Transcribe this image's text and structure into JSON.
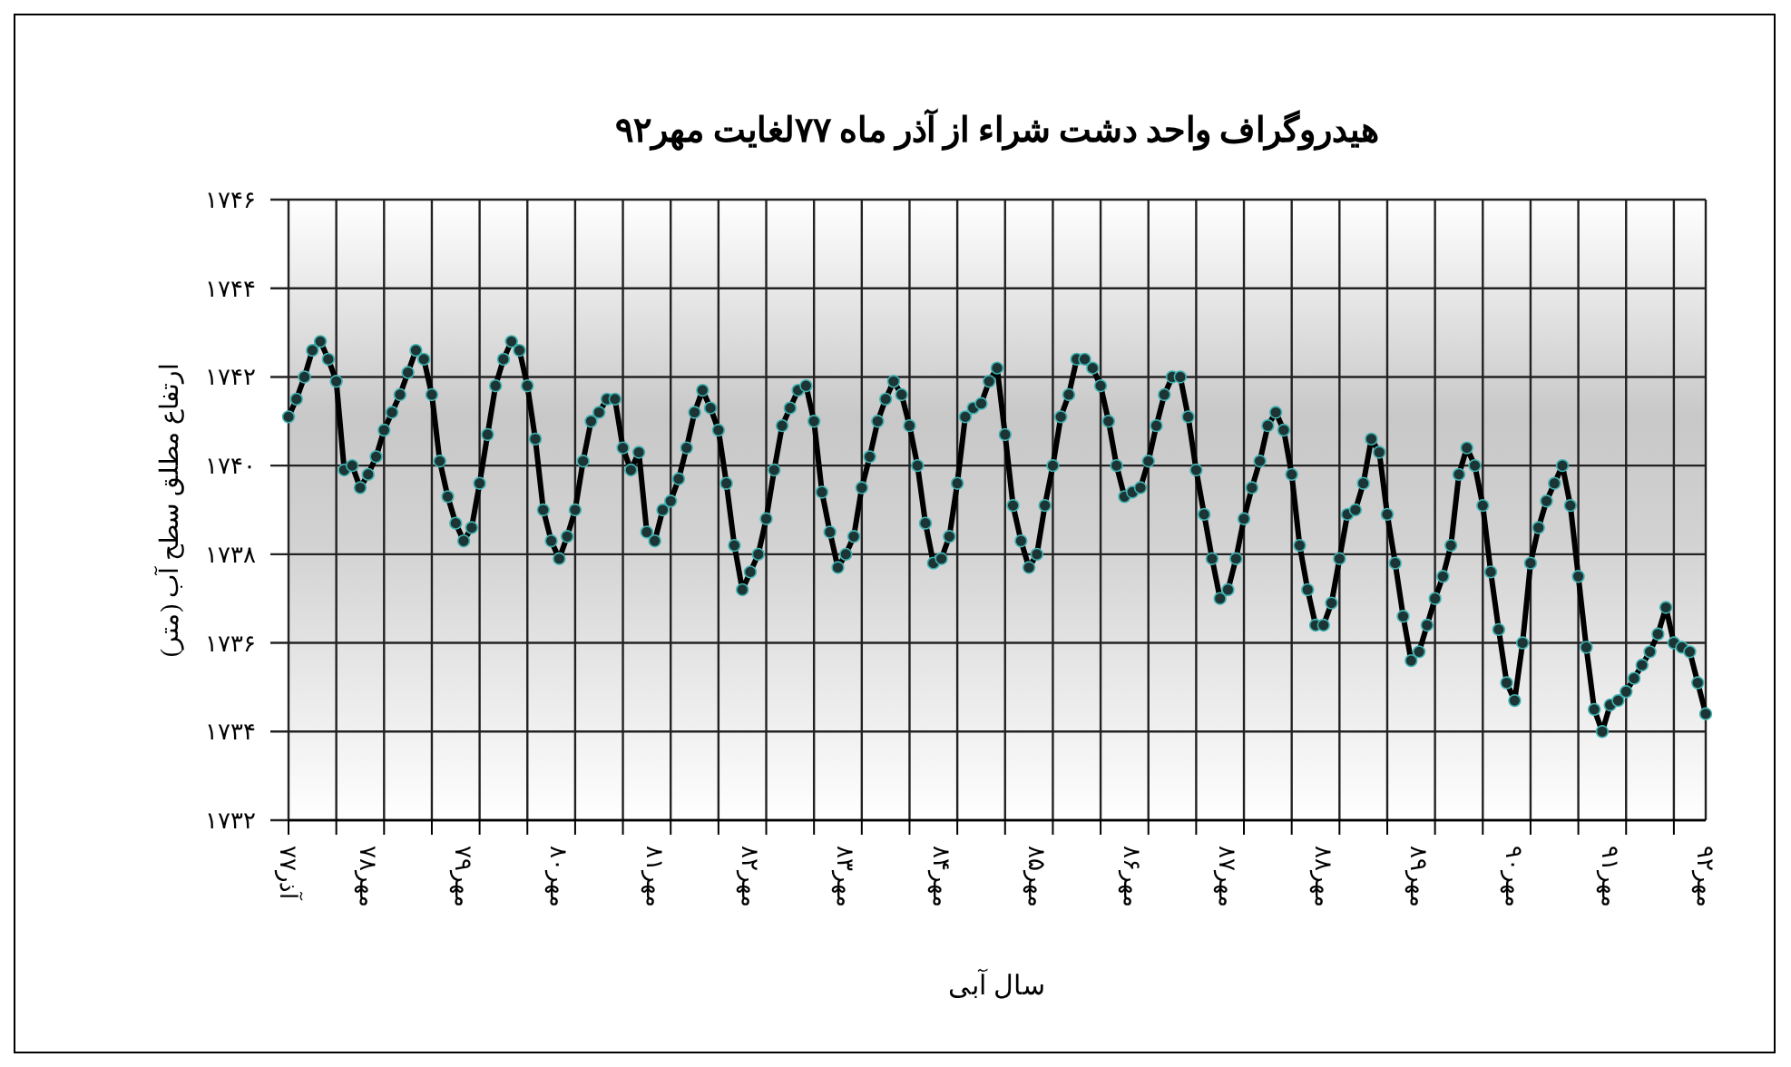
{
  "chart_data": {
    "type": "line",
    "title": "هیدروگراف واحد دشت شراء از آذر ماه ۷۷لغایت مهر۹۲",
    "xlabel": "سال آبی",
    "ylabel": "ارتفاع مطلق سطح آب (متر)",
    "categories": [
      "آذر۷۷",
      null,
      null,
      null,
      null,
      null,
      null,
      null,
      null,
      null,
      "مهر۷۸",
      null,
      null,
      null,
      null,
      null,
      null,
      null,
      null,
      null,
      null,
      null,
      "مهر۷۹",
      null,
      null,
      null,
      null,
      null,
      null,
      null,
      null,
      null,
      null,
      null,
      "مهر۸۰",
      null,
      null,
      null,
      null,
      null,
      null,
      null,
      null,
      null,
      null,
      null,
      "مهر۸۱",
      null,
      null,
      null,
      null,
      null,
      null,
      null,
      null,
      null,
      null,
      null,
      "مهر۸۲",
      null,
      null,
      null,
      null,
      null,
      null,
      null,
      null,
      null,
      null,
      null,
      "مهر۸۳",
      null,
      null,
      null,
      null,
      null,
      null,
      null,
      null,
      null,
      null,
      null,
      "مهر۸۴",
      null,
      null,
      null,
      null,
      null,
      null,
      null,
      null,
      null,
      null,
      null,
      "مهر۸۵",
      null,
      null,
      null,
      null,
      null,
      null,
      null,
      null,
      null,
      null,
      null,
      "مهر۸۶",
      null,
      null,
      null,
      null,
      null,
      null,
      null,
      null,
      null,
      null,
      null,
      "مهر۸۷",
      null,
      null,
      null,
      null,
      null,
      null,
      null,
      null,
      null,
      null,
      null,
      "مهر۸۸",
      null,
      null,
      null,
      null,
      null,
      null,
      null,
      null,
      null,
      null,
      null,
      "مهر۸۹",
      null,
      null,
      null,
      null,
      null,
      null,
      null,
      null,
      null,
      null,
      null,
      "مهر۹۰",
      null,
      null,
      null,
      null,
      null,
      null,
      null,
      null,
      null,
      null,
      null,
      "مهر۹۱",
      null,
      null,
      null,
      null,
      null,
      null,
      null,
      null,
      null,
      null,
      null,
      "مهر۹۲"
    ],
    "series": [
      {
        "color": "#000000",
        "values": [
          1741.1,
          1741.5,
          1742.0,
          1742.6,
          1742.8,
          1742.4,
          1741.9,
          1739.9,
          1740.0,
          1739.5,
          1739.8,
          1740.2,
          1740.8,
          1741.2,
          1741.6,
          1742.1,
          1742.6,
          1742.4,
          1741.6,
          1740.1,
          1739.3,
          1738.7,
          1738.3,
          1738.6,
          1739.6,
          1740.7,
          1741.8,
          1742.4,
          1742.8,
          1742.6,
          1741.8,
          1740.6,
          1739.0,
          1738.3,
          1737.9,
          1738.4,
          1739.0,
          1740.1,
          1741.0,
          1741.2,
          1741.5,
          1741.5,
          1740.4,
          1739.9,
          1740.3,
          1738.5,
          1738.3,
          1739.0,
          1739.2,
          1739.7,
          1740.4,
          1741.2,
          1741.7,
          1741.3,
          1740.8,
          1739.6,
          1738.2,
          1737.2,
          1737.6,
          1738.0,
          1738.8,
          1739.9,
          1740.9,
          1741.3,
          1741.7,
          1741.8,
          1741.0,
          1739.4,
          1738.5,
          1737.7,
          1738.0,
          1738.4,
          1739.5,
          1740.2,
          1741.0,
          1741.5,
          1741.9,
          1741.6,
          1740.9,
          1740.0,
          1738.7,
          1737.8,
          1737.9,
          1738.4,
          1739.6,
          1741.1,
          1741.3,
          1741.4,
          1741.9,
          1742.2,
          1740.7,
          1739.1,
          1738.3,
          1737.7,
          1738.0,
          1739.1,
          1740.0,
          1741.1,
          1741.6,
          1742.4,
          1742.4,
          1742.2,
          1741.8,
          1741.0,
          1740.0,
          1739.3,
          1739.4,
          1739.5,
          1740.1,
          1740.9,
          1741.6,
          1742.0,
          1742.0,
          1741.1,
          1739.9,
          1738.9,
          1737.9,
          1737.0,
          1737.2,
          1737.9,
          1738.8,
          1739.5,
          1740.1,
          1740.9,
          1741.2,
          1740.8,
          1739.8,
          1738.2,
          1737.2,
          1736.4,
          1736.4,
          1736.9,
          1737.9,
          1738.9,
          1739.0,
          1739.6,
          1740.6,
          1740.3,
          1738.9,
          1737.8,
          1736.6,
          1735.6,
          1735.8,
          1736.4,
          1737.0,
          1737.5,
          1738.2,
          1739.8,
          1740.4,
          1740.0,
          1739.1,
          1737.6,
          1736.3,
          1735.1,
          1734.7,
          1736.0,
          1737.8,
          1738.6,
          1739.2,
          1739.6,
          1740.0,
          1739.1,
          1737.5,
          1735.9,
          1734.5,
          1734.0,
          1734.6,
          1734.7,
          1734.9,
          1735.2,
          1735.5,
          1735.8,
          1736.2,
          1736.8,
          1736.0,
          1735.9,
          1735.8,
          1735.1,
          1734.4
        ]
      }
    ],
    "ylim": [
      1732,
      1746
    ],
    "yticks": [
      {
        "value": 1732,
        "label": "۱۷۳۲"
      },
      {
        "value": 1734,
        "label": "۱۷۳۴"
      },
      {
        "value": 1736,
        "label": "۱۷۳۶"
      },
      {
        "value": 1738,
        "label": "۱۷۳۸"
      },
      {
        "value": 1740,
        "label": "۱۷۴۰"
      },
      {
        "value": 1742,
        "label": "۱۷۴۲"
      },
      {
        "value": 1744,
        "label": "۱۷۴۴"
      },
      {
        "value": 1746,
        "label": "۱۷۴۶"
      }
    ],
    "grid": true,
    "marker": "circle",
    "line_style": "solid"
  }
}
